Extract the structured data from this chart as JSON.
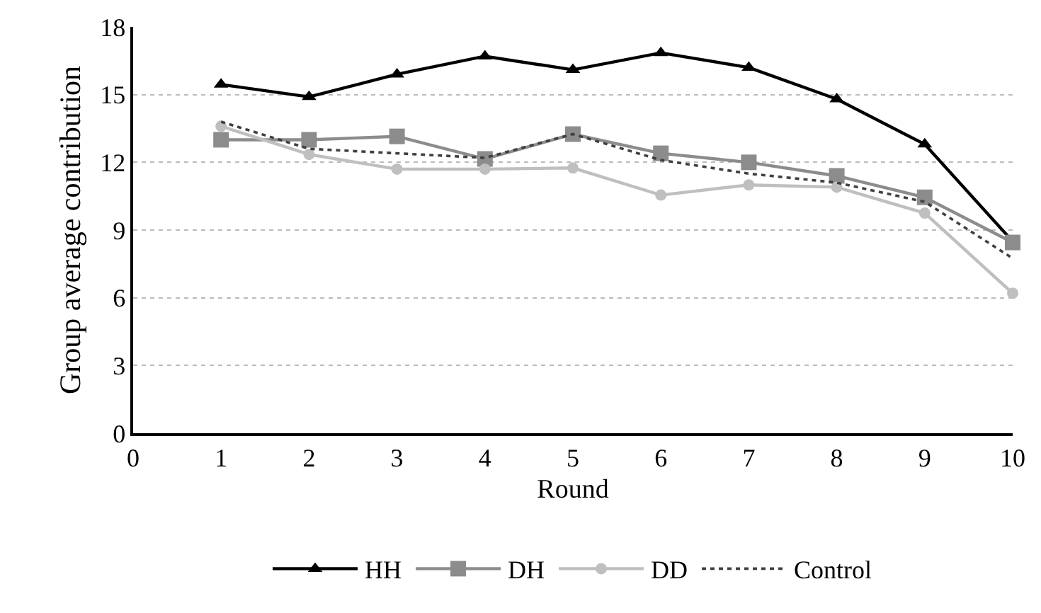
{
  "chart_data": {
    "type": "line",
    "xlabel": "Round",
    "ylabel": "Group average contribution",
    "x": [
      1,
      2,
      3,
      4,
      5,
      6,
      7,
      8,
      9,
      10
    ],
    "series": [
      {
        "name": "HH",
        "color": "#000000",
        "marker": "triangle",
        "line_style": "solid",
        "values": [
          15.45,
          14.9,
          15.9,
          16.7,
          16.1,
          16.85,
          16.2,
          14.8,
          12.8,
          8.5
        ]
      },
      {
        "name": "DH",
        "color": "#8c8c8c",
        "marker": "square",
        "line_style": "solid",
        "values": [
          13.0,
          13.0,
          13.15,
          12.15,
          13.25,
          12.4,
          12.0,
          11.4,
          10.45,
          8.45
        ]
      },
      {
        "name": "DD",
        "color": "#bfbfbf",
        "marker": "circle",
        "line_style": "solid",
        "values": [
          13.6,
          12.35,
          11.7,
          11.7,
          11.75,
          10.55,
          11.0,
          10.9,
          9.75,
          6.2
        ]
      },
      {
        "name": "Control",
        "color": "#404040",
        "marker": "none",
        "line_style": "dotted",
        "values": [
          13.8,
          12.6,
          12.4,
          12.2,
          13.25,
          12.1,
          11.5,
          11.1,
          10.25,
          7.75
        ]
      }
    ],
    "xlim": [
      0,
      10
    ],
    "xticks": [
      0,
      1,
      2,
      3,
      4,
      5,
      6,
      7,
      8,
      9,
      10
    ],
    "ylim": [
      0,
      18
    ],
    "yticks": [
      0,
      3,
      6,
      9,
      12,
      15,
      18
    ],
    "grid": "y",
    "legend": "bottom"
  }
}
